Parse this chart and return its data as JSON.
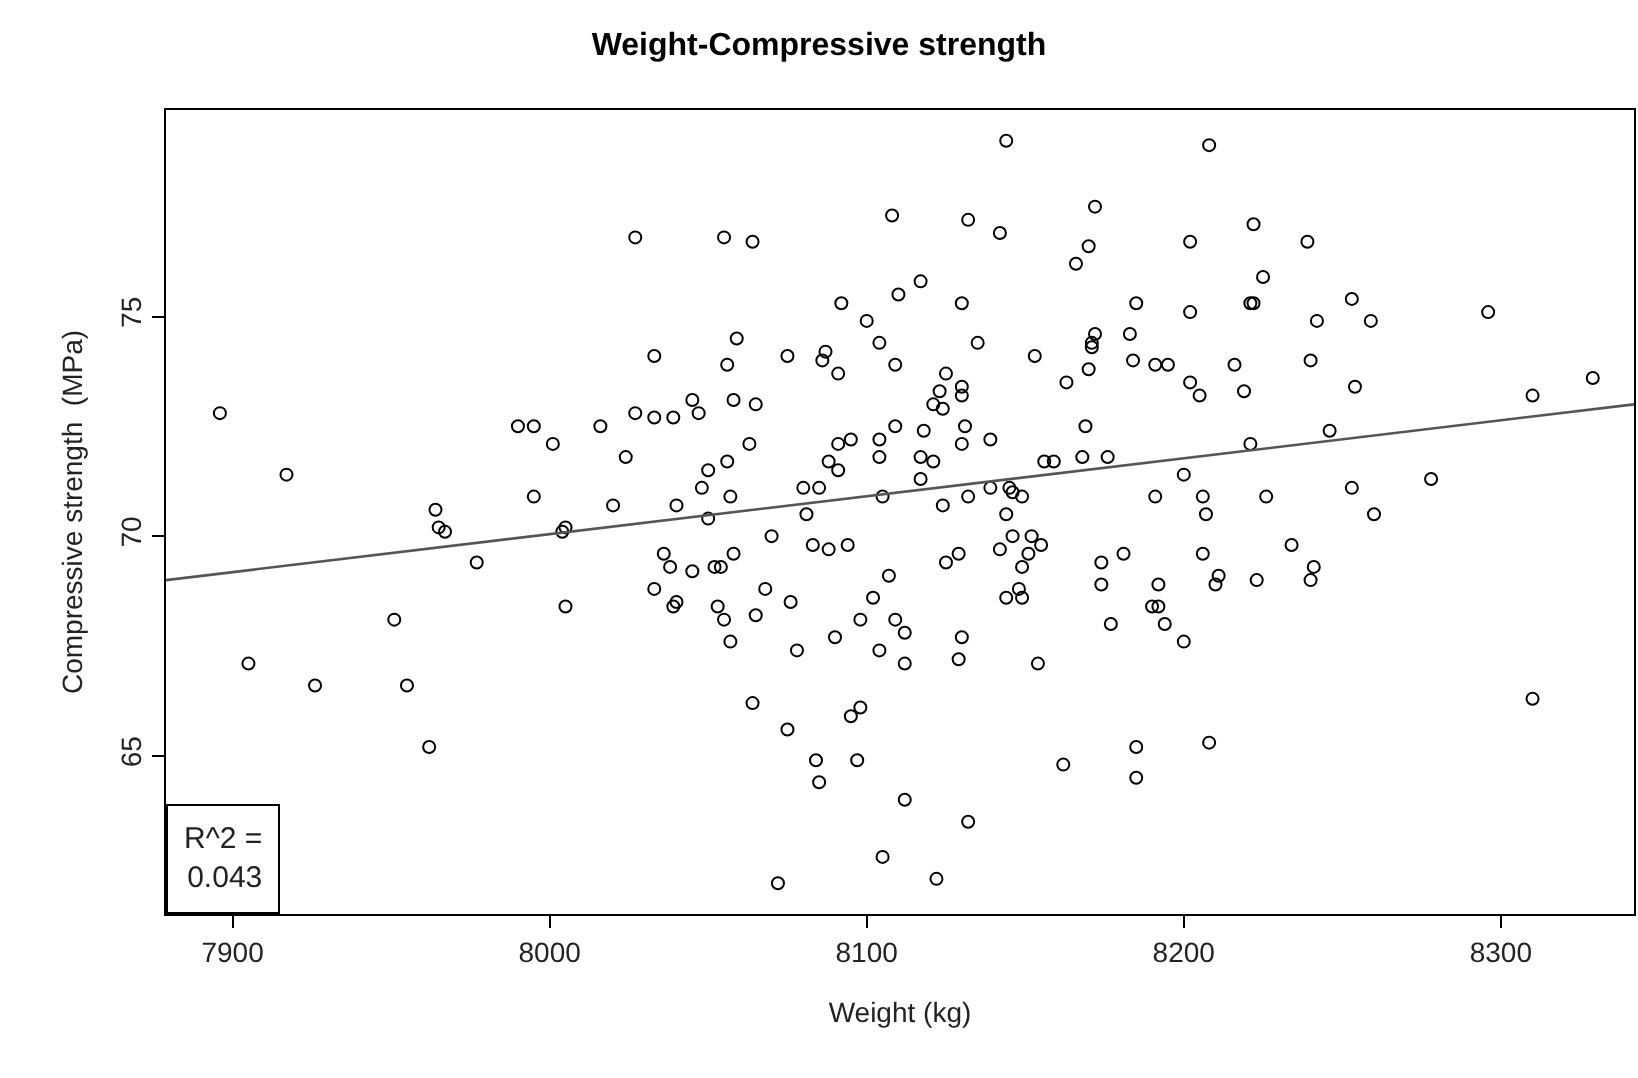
{
  "chart_data": {
    "type": "scatter",
    "title": "Weight-Compressive strength",
    "xlabel": "Weight (kg)",
    "ylabel": "Compressive strength  (MPa)",
    "annotations": [
      "R^2 =\n0.043"
    ],
    "xlim": [
      7879,
      8342
    ],
    "ylim": [
      61.4,
      79.7
    ],
    "xticks": [
      7900,
      8000,
      8100,
      8200,
      8300
    ],
    "yticks": [
      65,
      70,
      75
    ],
    "series": [
      {
        "marker": "circle",
        "color": "#000000",
        "x": [
          8027,
          8033,
          7896,
          7990,
          7995,
          8016,
          8027,
          8033,
          8001,
          8024,
          7917,
          7995,
          8020,
          7964,
          7965,
          7967,
          8004,
          8005,
          7977,
          8033,
          7951,
          8005,
          7905,
          7926,
          7955,
          7962,
          8144,
          8108,
          8132,
          8142,
          8172,
          8055,
          8064,
          8170,
          8166,
          8117,
          8110,
          8130,
          8092,
          8185,
          8100,
          8059,
          8104,
          8135,
          8172,
          8171,
          8171,
          8183,
          8075,
          8087,
          8086,
          8056,
          8091,
          8109,
          8153,
          8184,
          8170,
          8125,
          8163,
          8130,
          8130,
          8123,
          8121,
          8124,
          8045,
          8058,
          8065,
          8039,
          8047,
          8109,
          8131,
          8169,
          8118,
          8063,
          8091,
          8095,
          8104,
          8130,
          8139,
          8117,
          8104,
          8168,
          8176,
          8056,
          8088,
          8091,
          8121,
          8156,
          8159,
          8050,
          8048,
          8080,
          8085,
          8117,
          8139,
          8145,
          8146,
          8040,
          8057,
          8105,
          8132,
          8149,
          8124,
          8050,
          8081,
          8144,
          8208,
          8222,
          8202,
          8239,
          8225,
          8221,
          8222,
          8253,
          8202,
          8242,
          8259,
          8296,
          8191,
          8195,
          8216,
          8240,
          8202,
          8205,
          8219,
          8254,
          8329,
          8310,
          8221,
          8246,
          8200,
          8278,
          8191,
          8206,
          8226,
          8253,
          8207,
          8260,
          8206,
          8234,
          8241,
          8211,
          8210,
          8223,
          8240,
          8192,
          8190,
          8192,
          8194,
          8200,
          8310,
          8208,
          8036,
          8038,
          8045,
          8052,
          8054,
          8058,
          8070,
          8083,
          8088,
          8094,
          8040,
          8039,
          8053,
          8055,
          8057,
          8065,
          8068,
          8076,
          8078,
          8090,
          8098,
          8102,
          8107,
          8109,
          8112,
          8104,
          8112,
          8125,
          8129,
          8130,
          8129,
          8142,
          8146,
          8152,
          8155,
          8151,
          8149,
          8148,
          8144,
          8149,
          8154,
          8174,
          8181,
          8174,
          8177,
          8064,
          8075,
          8095,
          8098,
          8084,
          8085,
          8097,
          8112,
          8132,
          8105,
          8072,
          8122,
          8162,
          8185,
          8185
        ],
        "values": [
          76.8,
          74.1,
          72.8,
          72.5,
          72.5,
          72.5,
          72.8,
          72.7,
          72.1,
          71.8,
          71.4,
          70.9,
          70.7,
          70.6,
          70.2,
          70.1,
          70.1,
          70.2,
          69.4,
          68.8,
          68.1,
          68.4,
          67.1,
          66.6,
          66.6,
          65.2,
          79.0,
          77.3,
          77.2,
          76.9,
          77.5,
          76.8,
          76.7,
          76.6,
          76.2,
          75.8,
          75.5,
          75.3,
          75.3,
          75.3,
          74.9,
          74.5,
          74.4,
          74.4,
          74.6,
          74.4,
          74.3,
          74.6,
          74.1,
          74.2,
          74.0,
          73.9,
          73.7,
          73.9,
          74.1,
          74.0,
          73.8,
          73.7,
          73.5,
          73.4,
          73.2,
          73.3,
          73.0,
          72.9,
          73.1,
          73.1,
          73.0,
          72.7,
          72.8,
          72.5,
          72.5,
          72.5,
          72.4,
          72.1,
          72.1,
          72.2,
          72.2,
          72.1,
          72.2,
          71.8,
          71.8,
          71.8,
          71.8,
          71.7,
          71.7,
          71.5,
          71.7,
          71.7,
          71.7,
          71.5,
          71.1,
          71.1,
          71.1,
          71.3,
          71.1,
          71.1,
          71.0,
          70.7,
          70.9,
          70.9,
          70.9,
          70.9,
          70.7,
          70.4,
          70.5,
          70.5,
          78.9,
          77.1,
          76.7,
          76.7,
          75.9,
          75.3,
          75.3,
          75.4,
          75.1,
          74.9,
          74.9,
          75.1,
          73.9,
          73.9,
          73.9,
          74.0,
          73.5,
          73.2,
          73.3,
          73.4,
          73.6,
          73.2,
          72.1,
          72.4,
          71.4,
          71.3,
          70.9,
          70.9,
          70.9,
          71.1,
          70.5,
          70.5,
          69.6,
          69.8,
          69.3,
          69.1,
          68.9,
          69.0,
          69.0,
          68.9,
          68.4,
          68.4,
          68.0,
          67.6,
          66.3,
          65.3,
          69.6,
          69.3,
          69.2,
          69.3,
          69.3,
          69.6,
          70.0,
          69.8,
          69.7,
          69.8,
          68.5,
          68.4,
          68.4,
          68.1,
          67.6,
          68.2,
          68.8,
          68.5,
          67.4,
          67.7,
          68.1,
          68.6,
          69.1,
          68.1,
          67.8,
          67.4,
          67.1,
          69.4,
          69.6,
          67.7,
          67.2,
          69.7,
          70.0,
          70.0,
          69.8,
          69.6,
          69.3,
          68.8,
          68.6,
          68.6,
          67.1,
          69.4,
          69.6,
          68.9,
          68.0,
          66.2,
          65.6,
          65.9,
          66.1,
          64.9,
          64.4,
          64.9,
          64.0,
          63.5,
          62.7,
          62.1,
          62.2,
          64.8,
          65.2,
          64.5
        ]
      },
      {
        "type": "line",
        "marker": "none",
        "color": "#555555",
        "x": [
          7879,
          8342
        ],
        "values": [
          69.0,
          73.0
        ]
      }
    ]
  }
}
